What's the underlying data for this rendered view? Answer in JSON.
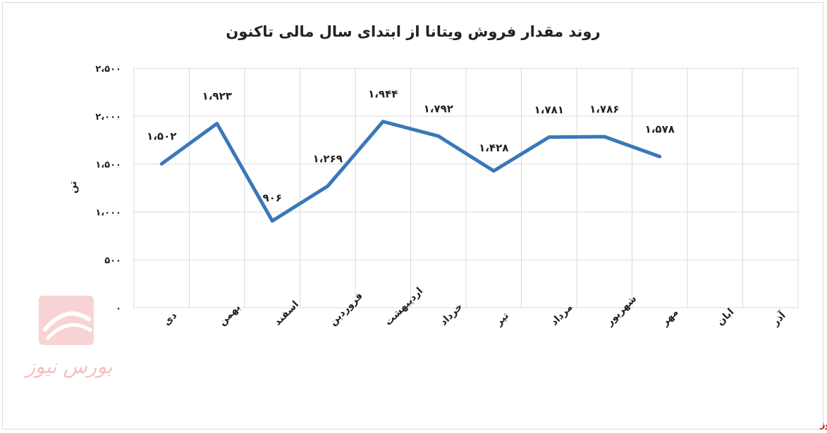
{
  "chart_data": {
    "type": "line",
    "title": "روند مقدار فروش ویتانا از ابتدای سال مالی تاکنون",
    "ylabel": "تن",
    "xlabel": "",
    "categories": [
      "دی",
      "بهمن",
      "اسفند",
      "فروردین",
      "اردیبهشت",
      "خرداد",
      "تیر",
      "مرداد",
      "شهریور",
      "مهر",
      "ابان",
      "آذر"
    ],
    "series": [
      {
        "values": [
          1502,
          1923,
          906,
          1269,
          1944,
          1792,
          1428,
          1781,
          1786,
          1578,
          null,
          null
        ],
        "data_labels": [
          "۱،۵۰۲",
          "۱،۹۲۳",
          "۹۰۶",
          "۱،۲۶۹",
          "۱،۹۴۴",
          "۱،۷۹۲",
          "۱،۴۲۸",
          "۱،۷۸۱",
          "۱،۷۸۶",
          "۱،۵۷۸",
          "",
          ""
        ],
        "color": "#3a78b8"
      }
    ],
    "ylim": [
      0,
      2500
    ],
    "yticks": [
      0,
      500,
      1000,
      1500,
      2000,
      2500
    ],
    "ytick_labels": [
      "۰",
      "۵۰۰",
      "۱،۰۰۰",
      "۱،۵۰۰",
      "۲،۰۰۰",
      "۲،۵۰۰"
    ],
    "grid": true,
    "legend": "none"
  },
  "watermark": {
    "text": "بورس نیوز",
    "color": "#f08c8c"
  },
  "footer": {
    "text": "بورس نیوز",
    "color": "#d11a1a"
  }
}
